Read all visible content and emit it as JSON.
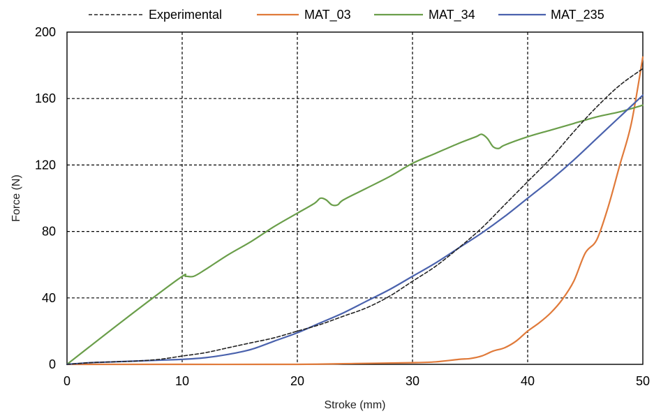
{
  "chart_data": {
    "type": "line",
    "xlabel": "Stroke (mm)",
    "ylabel": "Force (N)",
    "xlim": [
      0,
      50
    ],
    "ylim": [
      0,
      200
    ],
    "x_ticks": [
      0,
      10,
      20,
      30,
      40,
      50
    ],
    "y_ticks": [
      0,
      40,
      80,
      120,
      160,
      200
    ],
    "grid": true,
    "grid_style": "dashed",
    "legend_position": "top",
    "series": [
      {
        "name": "Experimental",
        "color": "#222222",
        "dashed": true,
        "points": [
          [
            0,
            0
          ],
          [
            2,
            1
          ],
          [
            4,
            1.5
          ],
          [
            6,
            2
          ],
          [
            8,
            3
          ],
          [
            10,
            5
          ],
          [
            12,
            7
          ],
          [
            14,
            10
          ],
          [
            16,
            13
          ],
          [
            18,
            16
          ],
          [
            20,
            20
          ],
          [
            22,
            24
          ],
          [
            24,
            29
          ],
          [
            26,
            34
          ],
          [
            28,
            41
          ],
          [
            30,
            50
          ],
          [
            32,
            59
          ],
          [
            34,
            70
          ],
          [
            36,
            82
          ],
          [
            38,
            96
          ],
          [
            40,
            110
          ],
          [
            42,
            124
          ],
          [
            44,
            140
          ],
          [
            46,
            155
          ],
          [
            48,
            168
          ],
          [
            50,
            178
          ]
        ]
      },
      {
        "name": "MAT_03",
        "color": "#e07a3a",
        "dashed": false,
        "points": [
          [
            0,
            0
          ],
          [
            10,
            0
          ],
          [
            20,
            0
          ],
          [
            25,
            0.5
          ],
          [
            30,
            1
          ],
          [
            32,
            1.5
          ],
          [
            34,
            3
          ],
          [
            35,
            3.5
          ],
          [
            36,
            5
          ],
          [
            37,
            8
          ],
          [
            38,
            10
          ],
          [
            39,
            14
          ],
          [
            40,
            20
          ],
          [
            41,
            25
          ],
          [
            42,
            31
          ],
          [
            43,
            39
          ],
          [
            44,
            50
          ],
          [
            45,
            67
          ],
          [
            46,
            75
          ],
          [
            47,
            95
          ],
          [
            48,
            120
          ],
          [
            49,
            145
          ],
          [
            50,
            185
          ]
        ]
      },
      {
        "name": "MAT_34",
        "color": "#6a9e4a",
        "dashed": false,
        "points": [
          [
            0,
            0
          ],
          [
            5,
            27
          ],
          [
            9.8,
            52
          ],
          [
            10.3,
            53
          ],
          [
            11,
            53
          ],
          [
            12,
            57
          ],
          [
            14,
            66
          ],
          [
            16,
            74
          ],
          [
            18,
            83
          ],
          [
            20,
            91
          ],
          [
            21.5,
            97
          ],
          [
            22,
            100
          ],
          [
            22.5,
            99
          ],
          [
            23,
            96
          ],
          [
            23.5,
            96
          ],
          [
            24,
            99
          ],
          [
            26,
            106
          ],
          [
            28,
            113
          ],
          [
            30,
            121
          ],
          [
            32,
            127
          ],
          [
            34,
            133
          ],
          [
            35.5,
            137
          ],
          [
            36,
            138.5
          ],
          [
            36.5,
            136
          ],
          [
            37,
            131
          ],
          [
            37.5,
            130
          ],
          [
            38,
            132
          ],
          [
            40,
            137
          ],
          [
            42,
            141
          ],
          [
            44,
            145
          ],
          [
            46,
            149
          ],
          [
            48,
            152
          ],
          [
            50,
            156
          ]
        ]
      },
      {
        "name": "MAT_235",
        "color": "#4a62ad",
        "dashed": false,
        "points": [
          [
            0,
            0
          ],
          [
            2,
            1
          ],
          [
            4,
            1.5
          ],
          [
            6,
            2
          ],
          [
            8,
            2.5
          ],
          [
            10,
            3
          ],
          [
            12,
            4
          ],
          [
            14,
            6
          ],
          [
            16,
            9
          ],
          [
            18,
            14
          ],
          [
            20,
            19
          ],
          [
            22,
            25
          ],
          [
            24,
            31
          ],
          [
            26,
            38
          ],
          [
            28,
            45
          ],
          [
            30,
            53
          ],
          [
            32,
            61
          ],
          [
            34,
            70
          ],
          [
            36,
            79
          ],
          [
            38,
            89
          ],
          [
            40,
            100
          ],
          [
            42,
            111
          ],
          [
            44,
            123
          ],
          [
            46,
            136
          ],
          [
            48,
            149
          ],
          [
            50,
            162
          ]
        ]
      }
    ]
  }
}
